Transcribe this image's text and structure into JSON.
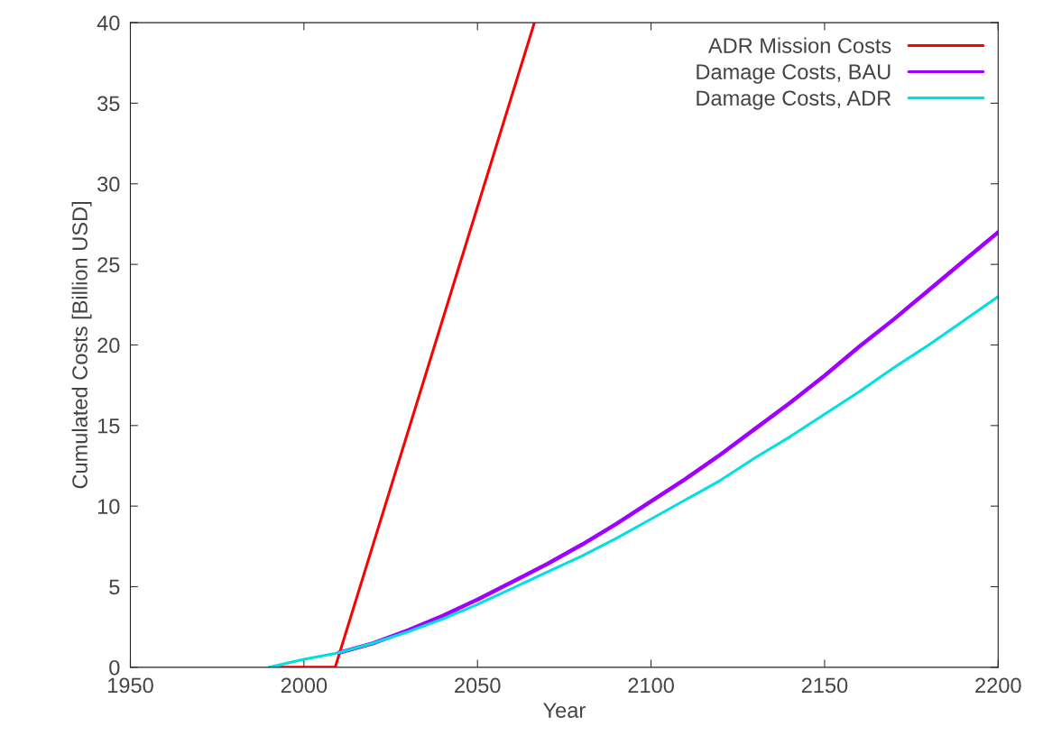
{
  "chart_data": {
    "type": "line",
    "xlabel": "Year",
    "ylabel": "Cumulated Costs [Billion USD]",
    "xlim": [
      1950,
      2200
    ],
    "xticks": [
      1950,
      2000,
      2050,
      2100,
      2150,
      2200
    ],
    "ylim": [
      0,
      40
    ],
    "yticks": [
      0,
      5,
      10,
      15,
      20,
      25,
      30,
      35,
      40
    ],
    "grid": false,
    "legend": "top right",
    "series": [
      {
        "name": "ADR Mission Costs",
        "color": "#ff0000",
        "x": [
          1990,
          2009,
          2066.4
        ],
        "values": [
          0,
          0,
          40
        ]
      },
      {
        "name": "Damage Costs, BAU",
        "color": "#a000ff",
        "x": [
          2010,
          2020,
          2030,
          2040,
          2050,
          2060,
          2070,
          2080,
          2090,
          2100,
          2110,
          2120,
          2130,
          2140,
          2150,
          2160,
          2170,
          2180,
          2190,
          2200
        ],
        "values": [
          0.9,
          1.5,
          2.3,
          3.2,
          4.2,
          5.3,
          6.4,
          7.6,
          8.9,
          10.3,
          11.7,
          13.2,
          14.8,
          16.4,
          18.1,
          19.9,
          21.6,
          23.4,
          25.2,
          27.0
        ]
      },
      {
        "name": "Damage Costs, ADR",
        "color": "#00e0e0",
        "x": [
          1990,
          2000,
          2010,
          2020,
          2030,
          2040,
          2050,
          2060,
          2070,
          2080,
          2090,
          2100,
          2110,
          2120,
          2130,
          2140,
          2150,
          2160,
          2170,
          2180,
          2190,
          2200
        ],
        "values": [
          0,
          0.5,
          0.9,
          1.5,
          2.2,
          3.0,
          3.9,
          4.9,
          5.9,
          6.9,
          8.0,
          9.2,
          10.4,
          11.6,
          13.0,
          14.3,
          15.7,
          17.1,
          18.6,
          20.0,
          21.5,
          23.0
        ]
      }
    ]
  }
}
